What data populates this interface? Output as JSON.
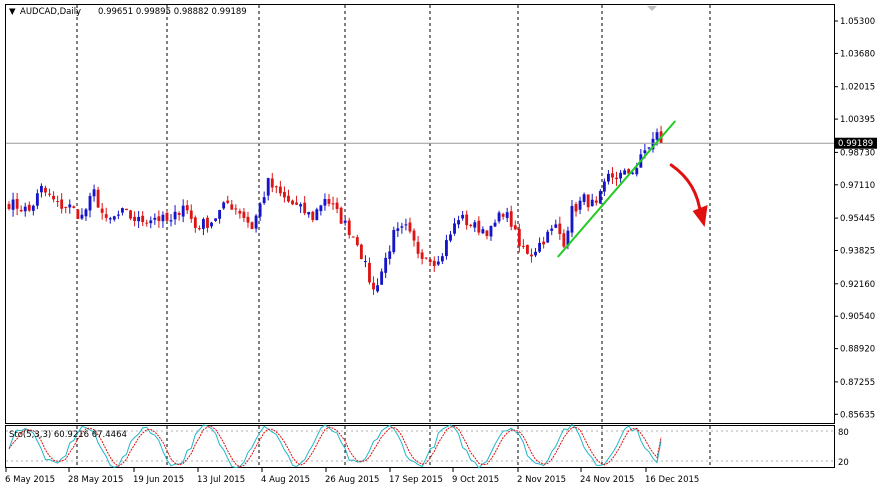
{
  "header": {
    "symbol": "AUDCAD,Daily",
    "ohlc": "0.99651 0.99895 0.98882 0.99189"
  },
  "stoch_header": "Sto(5,3,3) 60.9216 67.4464",
  "stoch_levels": [
    "80",
    "20"
  ],
  "current_price": "0.99189",
  "colors": {
    "bull": "#1414c8",
    "bear": "#dc1414",
    "trendline": "#22cc22",
    "arrow": "#e01010",
    "grid": "#000000",
    "stoch_main": "#20b8c8",
    "stoch_signal": "#e01010"
  },
  "chart_data": {
    "type": "candlestick",
    "price_axis_ticks": [
      "1.05300",
      "1.03680",
      "1.02015",
      "1.00395",
      "0.98730",
      "0.97110",
      "0.95445",
      "0.93825",
      "0.92160",
      "0.90540",
      "0.88920",
      "0.87255",
      "0.85635"
    ],
    "ylim": [
      0.852,
      1.061
    ],
    "date_labels": [
      "6 May 2015",
      "28 May 2015",
      "19 Jun 2015",
      "13 Jul 2015",
      "4 Aug 2015",
      "26 Aug 2015",
      "17 Sep 2015",
      "9 Oct 2015",
      "2 Nov 2015",
      "24 Nov 2015",
      "16 Dec 2015"
    ],
    "period_separators": 8,
    "stochastic": {
      "main": 60.9216,
      "signal": 67.4464,
      "levels": [
        80,
        20
      ],
      "params": "5,3,3"
    },
    "close_path": [
      [
        0,
        0.962
      ],
      [
        5,
        0.958
      ],
      [
        8,
        0.969
      ],
      [
        12,
        0.961
      ],
      [
        15,
        0.96
      ],
      [
        18,
        0.955
      ],
      [
        21,
        0.967
      ],
      [
        24,
        0.952
      ],
      [
        28,
        0.957
      ],
      [
        32,
        0.953
      ],
      [
        36,
        0.955
      ],
      [
        40,
        0.952
      ],
      [
        43,
        0.962
      ],
      [
        46,
        0.95
      ],
      [
        50,
        0.953
      ],
      [
        54,
        0.962
      ],
      [
        57,
        0.958
      ],
      [
        60,
        0.95
      ],
      [
        64,
        0.972
      ],
      [
        68,
        0.964
      ],
      [
        71,
        0.96
      ],
      [
        75,
        0.955
      ],
      [
        78,
        0.965
      ],
      [
        82,
        0.954
      ],
      [
        86,
        0.943
      ],
      [
        88,
        0.93
      ],
      [
        90,
        0.918
      ],
      [
        92,
        0.928
      ],
      [
        95,
        0.946
      ],
      [
        98,
        0.949
      ],
      [
        101,
        0.938
      ],
      [
        104,
        0.935
      ],
      [
        106,
        0.932
      ],
      [
        108,
        0.942
      ],
      [
        111,
        0.955
      ],
      [
        115,
        0.95
      ],
      [
        119,
        0.948
      ],
      [
        122,
        0.958
      ],
      [
        124,
        0.952
      ],
      [
        126,
        0.94
      ],
      [
        129,
        0.937
      ],
      [
        132,
        0.944
      ],
      [
        135,
        0.95
      ],
      [
        137,
        0.943
      ],
      [
        139,
        0.958
      ],
      [
        142,
        0.964
      ],
      [
        145,
        0.96
      ],
      [
        148,
        0.975
      ],
      [
        152,
        0.976
      ],
      [
        155,
        0.98
      ],
      [
        157,
        0.988
      ],
      [
        160,
        0.996
      ],
      [
        161,
        0.9919
      ]
    ],
    "trendline": {
      "from": [
        136,
        0.935
      ],
      "to": [
        165,
        1.003
      ]
    },
    "forecast_arrow": {
      "from": [
        164,
        0.981
      ],
      "via": [
        169,
        0.97
      ],
      "to": [
        172,
        0.951
      ]
    }
  }
}
